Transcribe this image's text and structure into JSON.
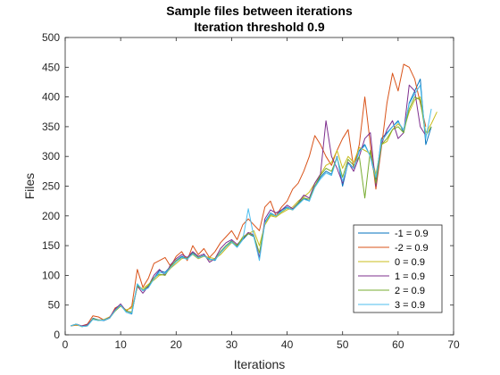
{
  "chart_data": {
    "type": "line",
    "title": "Sample files between iterations",
    "subtitle": "Iteration threshold 0.9",
    "xlabel": "Iterations",
    "ylabel": "Files",
    "xlim": [
      0,
      70
    ],
    "ylim": [
      0,
      500
    ],
    "xticks": [
      0,
      10,
      20,
      30,
      40,
      50,
      60,
      70
    ],
    "yticks": [
      0,
      50,
      100,
      150,
      200,
      250,
      300,
      350,
      400,
      450,
      500
    ],
    "grid": false,
    "legend_position": "bottom-right",
    "series": [
      {
        "name": "-1 = 0.9",
        "color": "#0072bd",
        "x": [
          1,
          2,
          3,
          4,
          5,
          6,
          7,
          8,
          9,
          10,
          11,
          12,
          13,
          14,
          15,
          16,
          17,
          18,
          19,
          20,
          21,
          22,
          23,
          24,
          25,
          26,
          27,
          28,
          29,
          30,
          31,
          32,
          33,
          34,
          35,
          36,
          37,
          38,
          39,
          40,
          41,
          42,
          43,
          44,
          45,
          46,
          47,
          48,
          49,
          50,
          51,
          52,
          53,
          54,
          55,
          56,
          57,
          58,
          59,
          60,
          61,
          62,
          63,
          64,
          65,
          66
        ],
        "y": [
          15,
          18,
          14,
          15,
          28,
          25,
          24,
          28,
          42,
          50,
          38,
          35,
          85,
          75,
          80,
          95,
          108,
          105,
          115,
          125,
          132,
          128,
          138,
          130,
          134,
          128,
          125,
          140,
          150,
          158,
          148,
          160,
          170,
          165,
          130,
          190,
          205,
          200,
          210,
          215,
          210,
          220,
          230,
          225,
          250,
          265,
          275,
          270,
          300,
          250,
          290,
          280,
          310,
          320,
          300,
          260,
          330,
          340,
          350,
          360,
          340,
          390,
          410,
          430,
          320,
          350
        ]
      },
      {
        "name": "-2 = 0.9",
        "color": "#d95319",
        "x": [
          1,
          2,
          3,
          4,
          5,
          6,
          7,
          8,
          9,
          10,
          11,
          12,
          13,
          14,
          15,
          16,
          17,
          18,
          19,
          20,
          21,
          22,
          23,
          24,
          25,
          26,
          27,
          28,
          29,
          30,
          31,
          32,
          33,
          34,
          35,
          36,
          37,
          38,
          39,
          40,
          41,
          42,
          43,
          44,
          45,
          46,
          47,
          48,
          49,
          50,
          51,
          52,
          53,
          54,
          55,
          56,
          57,
          58,
          59,
          60,
          61,
          62,
          63,
          64,
          65
        ],
        "y": [
          15,
          16,
          15,
          18,
          32,
          30,
          25,
          28,
          45,
          50,
          40,
          48,
          110,
          80,
          95,
          120,
          125,
          130,
          115,
          132,
          140,
          125,
          150,
          135,
          145,
          130,
          140,
          155,
          165,
          175,
          160,
          185,
          195,
          185,
          175,
          215,
          225,
          200,
          215,
          225,
          245,
          255,
          275,
          300,
          335,
          320,
          300,
          285,
          310,
          330,
          345,
          280,
          320,
          400,
          320,
          245,
          315,
          390,
          440,
          410,
          455,
          450,
          430,
          390,
          350
        ]
      },
      {
        "name": "0 = 0.9",
        "color": "#c9bd1e",
        "x": [
          1,
          2,
          3,
          4,
          5,
          6,
          7,
          8,
          9,
          10,
          11,
          12,
          13,
          14,
          15,
          16,
          17,
          18,
          19,
          20,
          21,
          22,
          23,
          24,
          25,
          26,
          27,
          28,
          29,
          30,
          31,
          32,
          33,
          34,
          35,
          36,
          37,
          38,
          39,
          40,
          41,
          42,
          43,
          44,
          45,
          46,
          47,
          48,
          49,
          50,
          51,
          52,
          53,
          54,
          55,
          56,
          57,
          58,
          59,
          60,
          61,
          62,
          63,
          64,
          65,
          66,
          67
        ],
        "y": [
          15,
          17,
          14,
          16,
          26,
          24,
          26,
          30,
          40,
          48,
          42,
          45,
          80,
          78,
          85,
          92,
          100,
          102,
          112,
          120,
          128,
          130,
          135,
          128,
          132,
          130,
          128,
          135,
          145,
          155,
          150,
          165,
          170,
          175,
          150,
          185,
          200,
          198,
          205,
          210,
          215,
          225,
          232,
          240,
          255,
          270,
          285,
          290,
          310,
          280,
          300,
          290,
          315,
          310,
          305,
          270,
          320,
          325,
          345,
          355,
          345,
          375,
          395,
          400,
          340,
          355,
          375
        ]
      },
      {
        "name": "1 = 0.9",
        "color": "#7e2f8e",
        "x": [
          1,
          2,
          3,
          4,
          5,
          6,
          7,
          8,
          9,
          10,
          11,
          12,
          13,
          14,
          15,
          16,
          17,
          18,
          19,
          20,
          21,
          22,
          23,
          24,
          25,
          26,
          27,
          28,
          29,
          30,
          31,
          32,
          33,
          34,
          35,
          36,
          37,
          38,
          39,
          40,
          41,
          42,
          43,
          44,
          45,
          46,
          47,
          48,
          49,
          50,
          51,
          52,
          53,
          54,
          55,
          56,
          57,
          58,
          59,
          60,
          61,
          62,
          63,
          64,
          65
        ],
        "y": [
          15,
          18,
          15,
          17,
          27,
          25,
          25,
          29,
          43,
          52,
          40,
          38,
          82,
          70,
          82,
          100,
          110,
          100,
          118,
          128,
          135,
          130,
          140,
          132,
          136,
          122,
          128,
          145,
          155,
          160,
          152,
          162,
          172,
          168,
          128,
          195,
          210,
          205,
          210,
          218,
          212,
          222,
          235,
          230,
          255,
          270,
          360,
          300,
          280,
          255,
          290,
          275,
          300,
          330,
          340,
          250,
          320,
          345,
          360,
          330,
          340,
          420,
          410,
          350,
          335
        ]
      },
      {
        "name": "2 = 0.9",
        "color": "#77ac30",
        "x": [
          1,
          2,
          3,
          4,
          5,
          6,
          7,
          8,
          9,
          10,
          11,
          12,
          13,
          14,
          15,
          16,
          17,
          18,
          19,
          20,
          21,
          22,
          23,
          24,
          25,
          26,
          27,
          28,
          29,
          30,
          31,
          32,
          33,
          34,
          35,
          36,
          37,
          38,
          39,
          40,
          41,
          42,
          43,
          44,
          45,
          46,
          47,
          48,
          49,
          50,
          51,
          52,
          53,
          54,
          55,
          56,
          57,
          58,
          59,
          60,
          61,
          62,
          63,
          64,
          65,
          66
        ],
        "y": [
          15,
          18,
          14,
          15,
          27,
          25,
          25,
          28,
          40,
          49,
          40,
          38,
          83,
          75,
          83,
          96,
          102,
          100,
          115,
          125,
          130,
          128,
          137,
          130,
          133,
          126,
          127,
          140,
          150,
          157,
          150,
          163,
          170,
          167,
          138,
          188,
          202,
          200,
          207,
          213,
          210,
          222,
          230,
          228,
          250,
          268,
          280,
          275,
          298,
          265,
          295,
          285,
          300,
          230,
          310,
          255,
          320,
          330,
          345,
          350,
          340,
          380,
          400,
          395,
          335,
          350
        ]
      },
      {
        "name": "3 = 0.9",
        "color": "#4dbeee",
        "x": [
          1,
          2,
          3,
          4,
          5,
          6,
          7,
          8,
          9,
          10,
          11,
          12,
          13,
          14,
          15,
          16,
          17,
          18,
          19,
          20,
          21,
          22,
          23,
          24,
          25,
          26,
          27,
          28,
          29,
          30,
          31,
          32,
          33,
          34,
          35,
          36,
          37,
          38,
          39,
          40,
          41,
          42,
          43,
          44,
          45,
          46,
          47,
          48,
          49,
          50,
          51,
          52,
          53,
          54,
          55,
          56,
          57,
          58,
          59,
          60,
          61,
          62,
          63,
          64,
          65,
          66
        ],
        "y": [
          15,
          18,
          14,
          15,
          26,
          24,
          25,
          28,
          41,
          50,
          38,
          36,
          86,
          74,
          79,
          94,
          105,
          103,
          113,
          123,
          130,
          127,
          136,
          129,
          133,
          127,
          126,
          138,
          148,
          156,
          147,
          160,
          212,
          165,
          125,
          188,
          204,
          200,
          208,
          214,
          210,
          219,
          228,
          225,
          248,
          262,
          272,
          268,
          298,
          258,
          288,
          280,
          308,
          318,
          300,
          265,
          325,
          338,
          350,
          358,
          345,
          388,
          405,
          420,
          330,
          380
        ]
      }
    ]
  }
}
